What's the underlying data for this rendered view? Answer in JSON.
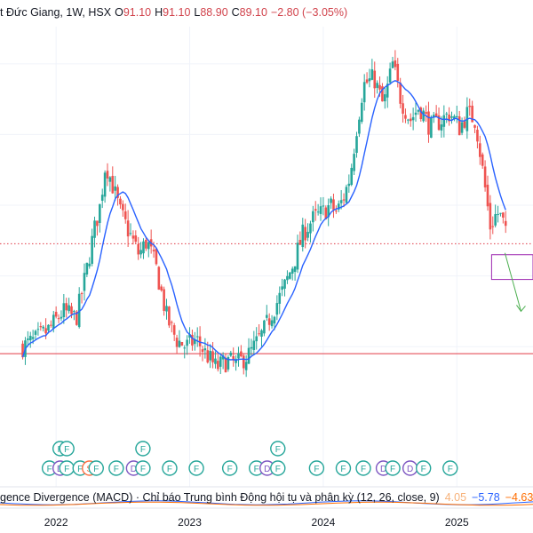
{
  "header": {
    "symbol_title": "t Đức Giang, 1W, HSX",
    "open_label": "O",
    "open_value": "91.10",
    "high_label": "H",
    "high_value": "91.10",
    "low_label": "L",
    "low_value": "88.90",
    "close_label": "C",
    "close_value": "89.10",
    "change": "−2.80 (−3.05%)"
  },
  "macd": {
    "title": "gence Divergence (MACD) · Chỉ báo Trung bình Động hội tụ và phân kỳ (12, 26, close, 9)",
    "value_faded": "4.05",
    "value_blue": "−5.78",
    "value_orange": "−4.63"
  },
  "colors": {
    "up": "#26a69a",
    "down": "#ef5350",
    "ma": "#2962ff",
    "support": "#e03a46",
    "box": "#9c27b0",
    "arrow": "#4caf50",
    "marker_green": "#26a69a",
    "marker_purple": "#7e57c2",
    "marker_orange": "#ff7043"
  },
  "chart_data": {
    "type": "candlestick",
    "interval": "1W",
    "exchange": "HSX",
    "x_axis_labels": [
      "2022",
      "2023",
      "2024",
      "2025"
    ],
    "close_series": [
      [
        2021.75,
        60
      ],
      [
        2021.85,
        62
      ],
      [
        2021.95,
        65
      ],
      [
        2022.05,
        70
      ],
      [
        2022.15,
        68
      ],
      [
        2022.22,
        80
      ],
      [
        2022.28,
        92
      ],
      [
        2022.33,
        100
      ],
      [
        2022.37,
        112
      ],
      [
        2022.42,
        106
      ],
      [
        2022.48,
        98
      ],
      [
        2022.55,
        92
      ],
      [
        2022.62,
        86
      ],
      [
        2022.68,
        90
      ],
      [
        2022.75,
        82
      ],
      [
        2022.83,
        68
      ],
      [
        2022.9,
        62
      ],
      [
        2022.97,
        60
      ],
      [
        2023.05,
        62
      ],
      [
        2023.12,
        58
      ],
      [
        2023.2,
        54
      ],
      [
        2023.28,
        56
      ],
      [
        2023.35,
        55
      ],
      [
        2023.45,
        58
      ],
      [
        2023.55,
        64
      ],
      [
        2023.62,
        70
      ],
      [
        2023.7,
        76
      ],
      [
        2023.78,
        84
      ],
      [
        2023.85,
        92
      ],
      [
        2023.92,
        96
      ],
      [
        2024.0,
        98
      ],
      [
        2024.05,
        100
      ],
      [
        2024.1,
        98
      ],
      [
        2024.15,
        102
      ],
      [
        2024.2,
        108
      ],
      [
        2024.25,
        122
      ],
      [
        2024.3,
        134
      ],
      [
        2024.38,
        136
      ],
      [
        2024.45,
        128
      ],
      [
        2024.52,
        140
      ],
      [
        2024.58,
        130
      ],
      [
        2024.65,
        124
      ],
      [
        2024.72,
        128
      ],
      [
        2024.8,
        122
      ],
      [
        2024.88,
        124
      ],
      [
        2024.95,
        126
      ],
      [
        2025.02,
        122
      ],
      [
        2025.08,
        126
      ],
      [
        2025.14,
        124
      ],
      [
        2025.2,
        108
      ],
      [
        2025.25,
        94
      ],
      [
        2025.3,
        98
      ],
      [
        2025.34,
        96
      ],
      [
        2025.38,
        89.1
      ]
    ],
    "moving_average_color": "#2962ff",
    "annotations": {
      "horizontal_support_level": 58,
      "current_price_line": 89.1,
      "purple_zone": [
        79,
        86
      ],
      "projected_drop_target": 70
    },
    "event_markers": [
      {
        "x": 2021.95,
        "labels": [
          "F"
        ]
      },
      {
        "x": 2022.03,
        "labels": [
          "D",
          "F"
        ]
      },
      {
        "x": 2022.08,
        "labels": [
          "F",
          "F"
        ]
      },
      {
        "x": 2022.18,
        "labels": [
          "F"
        ]
      },
      {
        "x": 2022.25,
        "labels": [
          "S"
        ]
      },
      {
        "x": 2022.3,
        "labels": [
          "F"
        ]
      },
      {
        "x": 2022.45,
        "labels": [
          "F"
        ]
      },
      {
        "x": 2022.58,
        "labels": [
          "D"
        ]
      },
      {
        "x": 2022.65,
        "labels": [
          "F",
          "F"
        ]
      },
      {
        "x": 2022.85,
        "labels": [
          "F"
        ]
      },
      {
        "x": 2023.05,
        "labels": [
          "F"
        ]
      },
      {
        "x": 2023.3,
        "labels": [
          "F"
        ]
      },
      {
        "x": 2023.5,
        "labels": [
          "F"
        ]
      },
      {
        "x": 2023.58,
        "labels": [
          "D"
        ]
      },
      {
        "x": 2023.66,
        "labels": [
          "F",
          "F"
        ]
      },
      {
        "x": 2023.95,
        "labels": [
          "F"
        ]
      },
      {
        "x": 2024.15,
        "labels": [
          "F"
        ]
      },
      {
        "x": 2024.3,
        "labels": [
          "F"
        ]
      },
      {
        "x": 2024.45,
        "labels": [
          "D"
        ]
      },
      {
        "x": 2024.52,
        "labels": [
          "F"
        ]
      },
      {
        "x": 2024.65,
        "labels": [
          "D"
        ]
      },
      {
        "x": 2024.75,
        "labels": [
          "F"
        ]
      },
      {
        "x": 2024.95,
        "labels": [
          "F"
        ]
      }
    ]
  }
}
